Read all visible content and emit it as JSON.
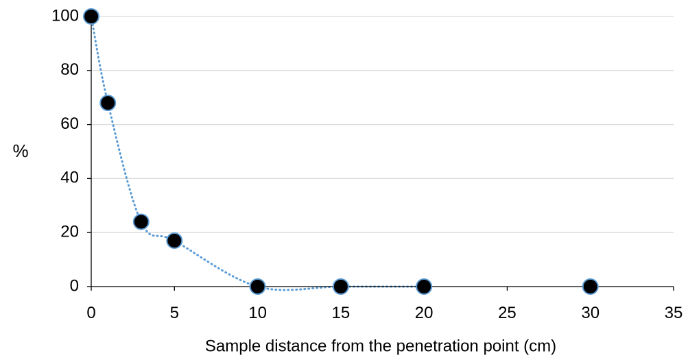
{
  "chart_data": {
    "type": "scatter",
    "title": "",
    "xlabel": "Sample distance from the penetration point (cm)",
    "ylabel": "%",
    "xlim": [
      0,
      35
    ],
    "ylim": [
      0,
      100
    ],
    "x_ticks": [
      0,
      5,
      10,
      15,
      20,
      25,
      30,
      35
    ],
    "y_ticks": [
      0,
      20,
      40,
      60,
      80,
      100
    ],
    "grid": "horizontal",
    "legend": "none",
    "trendline": "dotted smooth curve through points",
    "series": [
      {
        "x": [
          0,
          1,
          3,
          5,
          10,
          15,
          20,
          30
        ],
        "y": [
          100,
          68,
          24,
          17,
          0,
          0,
          0,
          0
        ]
      }
    ],
    "colors": {
      "marker_fill": "#000000",
      "marker_stroke": "#5b9bd5",
      "trendline": "#5b9bd5",
      "gridline": "#d9d9d9",
      "axis": "#000000"
    }
  }
}
